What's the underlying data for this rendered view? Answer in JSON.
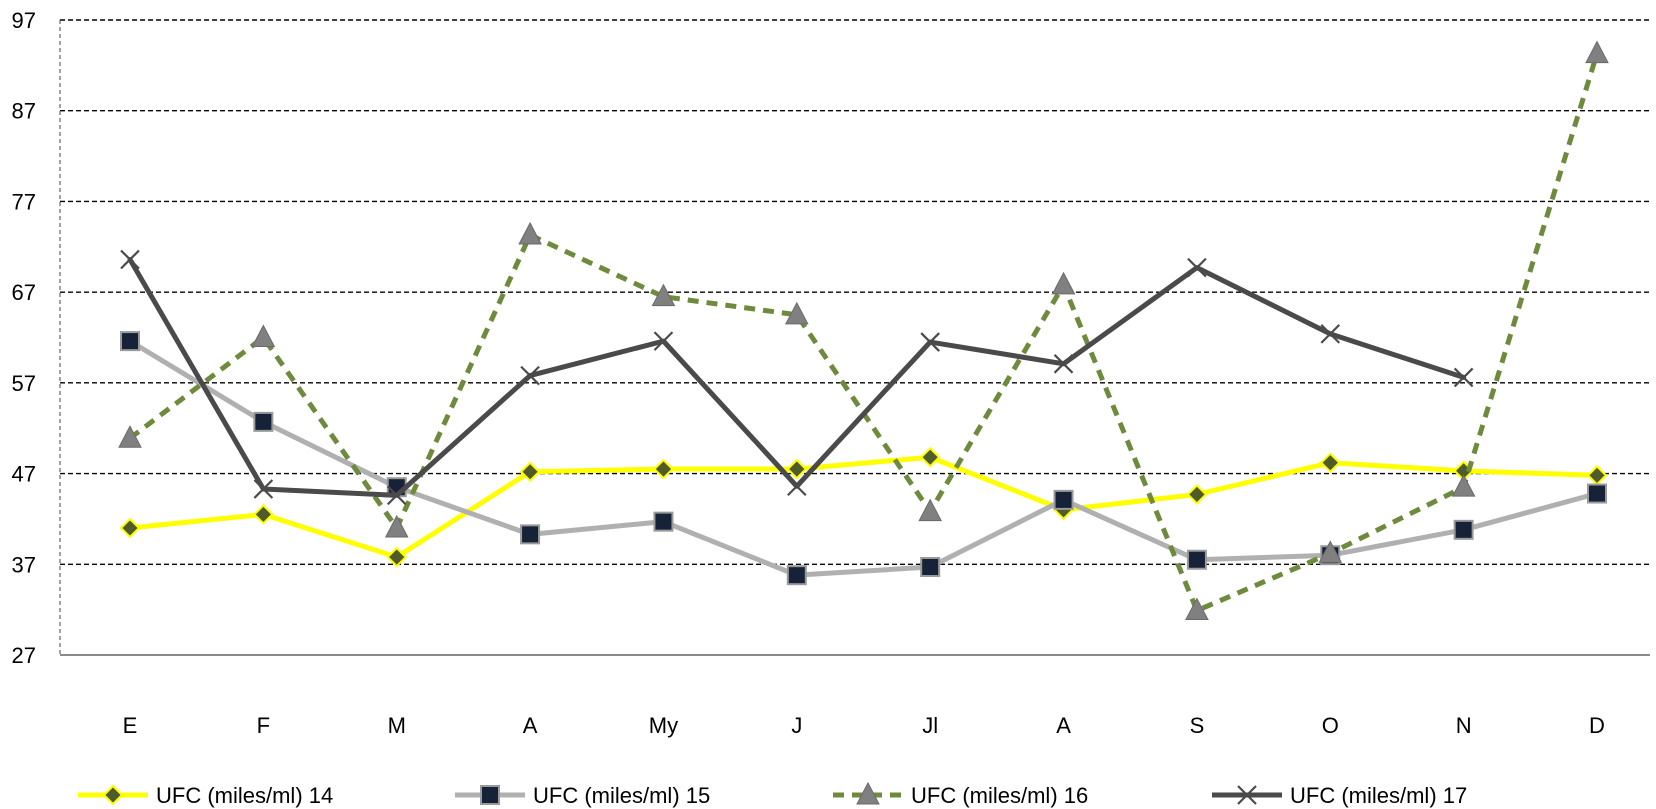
{
  "chart_data": {
    "type": "line",
    "title": "",
    "xlabel": "",
    "ylabel": "",
    "categories": [
      "E",
      "F",
      "M",
      "A",
      "My",
      "J",
      "Jl",
      "A",
      "S",
      "O",
      "N",
      "D"
    ],
    "ylim": [
      27,
      97
    ],
    "yticks": [
      27,
      37,
      47,
      57,
      67,
      77,
      87,
      97
    ],
    "grid": "horizontal dashed",
    "legend_position": "bottom",
    "series": [
      {
        "name": "UFC (miles/ml) 14",
        "color": "#FFFF00",
        "line_style": "solid",
        "marker": "diamond",
        "marker_color": "#4F5B2A",
        "values": [
          41,
          42.5,
          37.8,
          47.2,
          47.5,
          47.5,
          48.8,
          43,
          44.7,
          48.2,
          47.3,
          46.8
        ]
      },
      {
        "name": "UFC (miles/ml) 15",
        "color": "#B0B0B0",
        "line_style": "solid",
        "marker": "square",
        "marker_color": "#152238",
        "values": [
          61.6,
          52.7,
          45.5,
          40.3,
          41.7,
          35.8,
          36.7,
          44.1,
          37.5,
          38,
          40.8,
          44.8
        ]
      },
      {
        "name": "UFC (miles/ml) 16",
        "color": "#6E8B3D",
        "line_style": "dashed",
        "marker": "triangle",
        "marker_color": "#808080",
        "values": [
          50.9,
          62,
          41,
          73.3,
          66.5,
          64.5,
          42.8,
          67.8,
          31.9,
          38.2,
          45.5,
          93.3
        ]
      },
      {
        "name": "UFC (miles/ml) 17",
        "color": "#4A4A4A",
        "line_style": "solid",
        "marker": "x",
        "marker_color": "#4A4A4A",
        "values": [
          70.6,
          45.3,
          44.6,
          57.8,
          61.6,
          45.6,
          61.5,
          59.1,
          69.7,
          62.4,
          57.6,
          null
        ]
      }
    ]
  }
}
